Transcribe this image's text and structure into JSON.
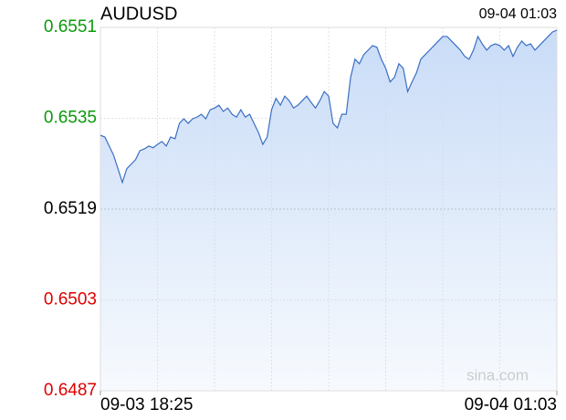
{
  "chart_data": {
    "type": "line",
    "title": "AUDUSD",
    "timestamp": "09-04 01:03",
    "watermark": "sina.com",
    "categories": [
      "09-03 18:25",
      null,
      null,
      null,
      null,
      null,
      null,
      null,
      null,
      null,
      null,
      null,
      null,
      null,
      null,
      null,
      null,
      null,
      null,
      null,
      null,
      null,
      null,
      null,
      null,
      null,
      null,
      null,
      null,
      null,
      null,
      null,
      null,
      null,
      null,
      null,
      null,
      null,
      null,
      null,
      null,
      null,
      null,
      null,
      null,
      null,
      null,
      null,
      null,
      null,
      null,
      null,
      null,
      null,
      null,
      null,
      null,
      null,
      null,
      null,
      null,
      null,
      null,
      null,
      null,
      null,
      null,
      null,
      null,
      null,
      null,
      null,
      null,
      null,
      null,
      null,
      null,
      null,
      null,
      null,
      null,
      null,
      null,
      null,
      null,
      null,
      null,
      null,
      null,
      null,
      null,
      null,
      null,
      null,
      null,
      null,
      null,
      null,
      null,
      null,
      null,
      null,
      null,
      null,
      "09-04 01:03"
    ],
    "values": [
      0.6532,
      0.65317,
      0.65301,
      0.65285,
      0.65261,
      0.65237,
      0.65261,
      0.65269,
      0.65277,
      0.65293,
      0.65296,
      0.65301,
      0.65298,
      0.65304,
      0.65309,
      0.65301,
      0.65317,
      0.65314,
      0.65341,
      0.65349,
      0.65341,
      0.65349,
      0.65352,
      0.65357,
      0.65349,
      0.65365,
      0.65368,
      0.65373,
      0.65362,
      0.65368,
      0.65357,
      0.65352,
      0.65365,
      0.65352,
      0.65357,
      0.65341,
      0.65325,
      0.65304,
      0.65317,
      0.65365,
      0.65385,
      0.65373,
      0.65389,
      0.65381,
      0.65368,
      0.65373,
      0.65381,
      0.65389,
      0.65378,
      0.65368,
      0.65381,
      0.65397,
      0.65389,
      0.65341,
      0.65333,
      0.65357,
      0.65357,
      0.65422,
      0.65454,
      0.65446,
      0.65462,
      0.6547,
      0.65478,
      0.65475,
      0.65454,
      0.65438,
      0.65414,
      0.65422,
      0.65446,
      0.65438,
      0.65397,
      0.65414,
      0.6543,
      0.65454,
      0.65462,
      0.6547,
      0.65478,
      0.65486,
      0.65494,
      0.65494,
      0.65486,
      0.65478,
      0.6547,
      0.65459,
      0.65454,
      0.6547,
      0.65494,
      0.65481,
      0.6547,
      0.65478,
      0.65481,
      0.65478,
      0.6547,
      0.65478,
      0.65459,
      0.65475,
      0.65486,
      0.65478,
      0.65481,
      0.6547,
      0.65478,
      0.65486,
      0.65494,
      0.65502,
      0.65505
    ],
    "color": "#3a6fc4",
    "fill_color": "#c9dcf7",
    "ylim": [
      0.6487,
      0.6551
    ],
    "yticks": [
      0.6487,
      0.6503,
      0.6519,
      0.6535,
      0.6551
    ],
    "reference": 0.6519,
    "up_color": "#0a9a0a",
    "down_color": "#dd0000",
    "flat_color": "#000000",
    "grid": true
  }
}
